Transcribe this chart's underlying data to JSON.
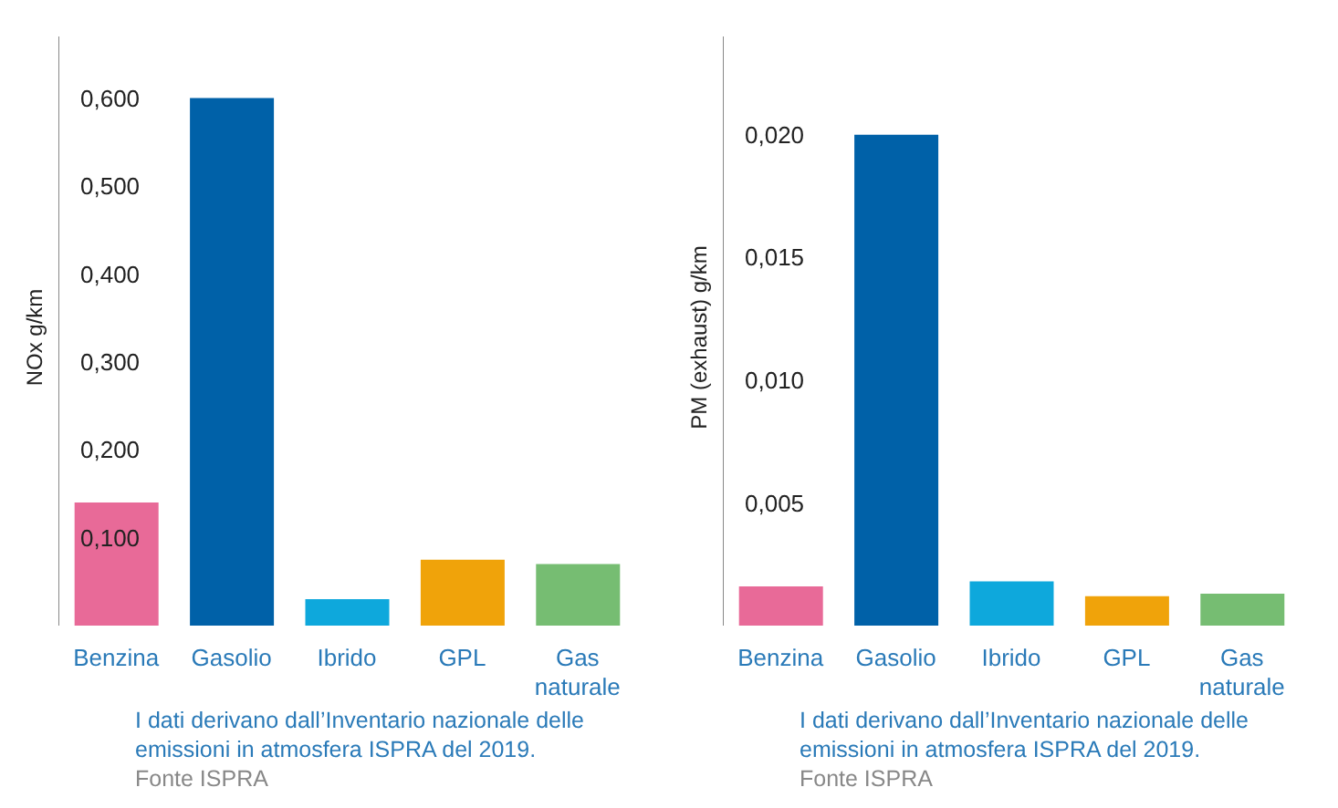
{
  "chart_data": [
    {
      "type": "bar",
      "categories": [
        "Benzina",
        "Gasolio",
        "Ibrido",
        "GPL",
        "Gas naturale"
      ],
      "values": [
        0.14,
        0.6,
        0.03,
        0.075,
        0.07
      ],
      "colors": [
        "#e86a98",
        "#0061a8",
        "#0ea8dc",
        "#f0a30a",
        "#76bd72"
      ],
      "ylabel": "NOx g/km",
      "ylim": [
        0,
        0.67
      ],
      "yticks": [
        {
          "value": 0.1,
          "label": "0,100"
        },
        {
          "value": 0.2,
          "label": "0,200"
        },
        {
          "value": 0.3,
          "label": "0,300"
        },
        {
          "value": 0.4,
          "label": "0,400"
        },
        {
          "value": 0.5,
          "label": "0,500"
        },
        {
          "value": 0.6,
          "label": "0,600"
        }
      ],
      "annotations": [
        "I dati derivano dall’Inventario nazionale delle emissioni in atmosfera ISPRA del 2019.",
        "Fonte ISPRA"
      ]
    },
    {
      "type": "bar",
      "categories": [
        "Benzina",
        "Gasolio",
        "Ibrido",
        "GPL",
        "Gas naturale"
      ],
      "values": [
        0.0016,
        0.02,
        0.0018,
        0.0012,
        0.0013
      ],
      "colors": [
        "#e86a98",
        "#0061a8",
        "#0ea8dc",
        "#f0a30a",
        "#76bd72"
      ],
      "ylabel": "PM (exhaust) g/km",
      "ylim": [
        0,
        0.024
      ],
      "yticks": [
        {
          "value": 0.005,
          "label": "0,005"
        },
        {
          "value": 0.01,
          "label": "0,010"
        },
        {
          "value": 0.015,
          "label": "0,015"
        },
        {
          "value": 0.02,
          "label": "0,020"
        }
      ],
      "annotations": [
        "I dati derivano dall’Inventario nazionale delle emissioni in atmosfera ISPRA del 2019.",
        "Fonte ISPRA"
      ]
    }
  ]
}
